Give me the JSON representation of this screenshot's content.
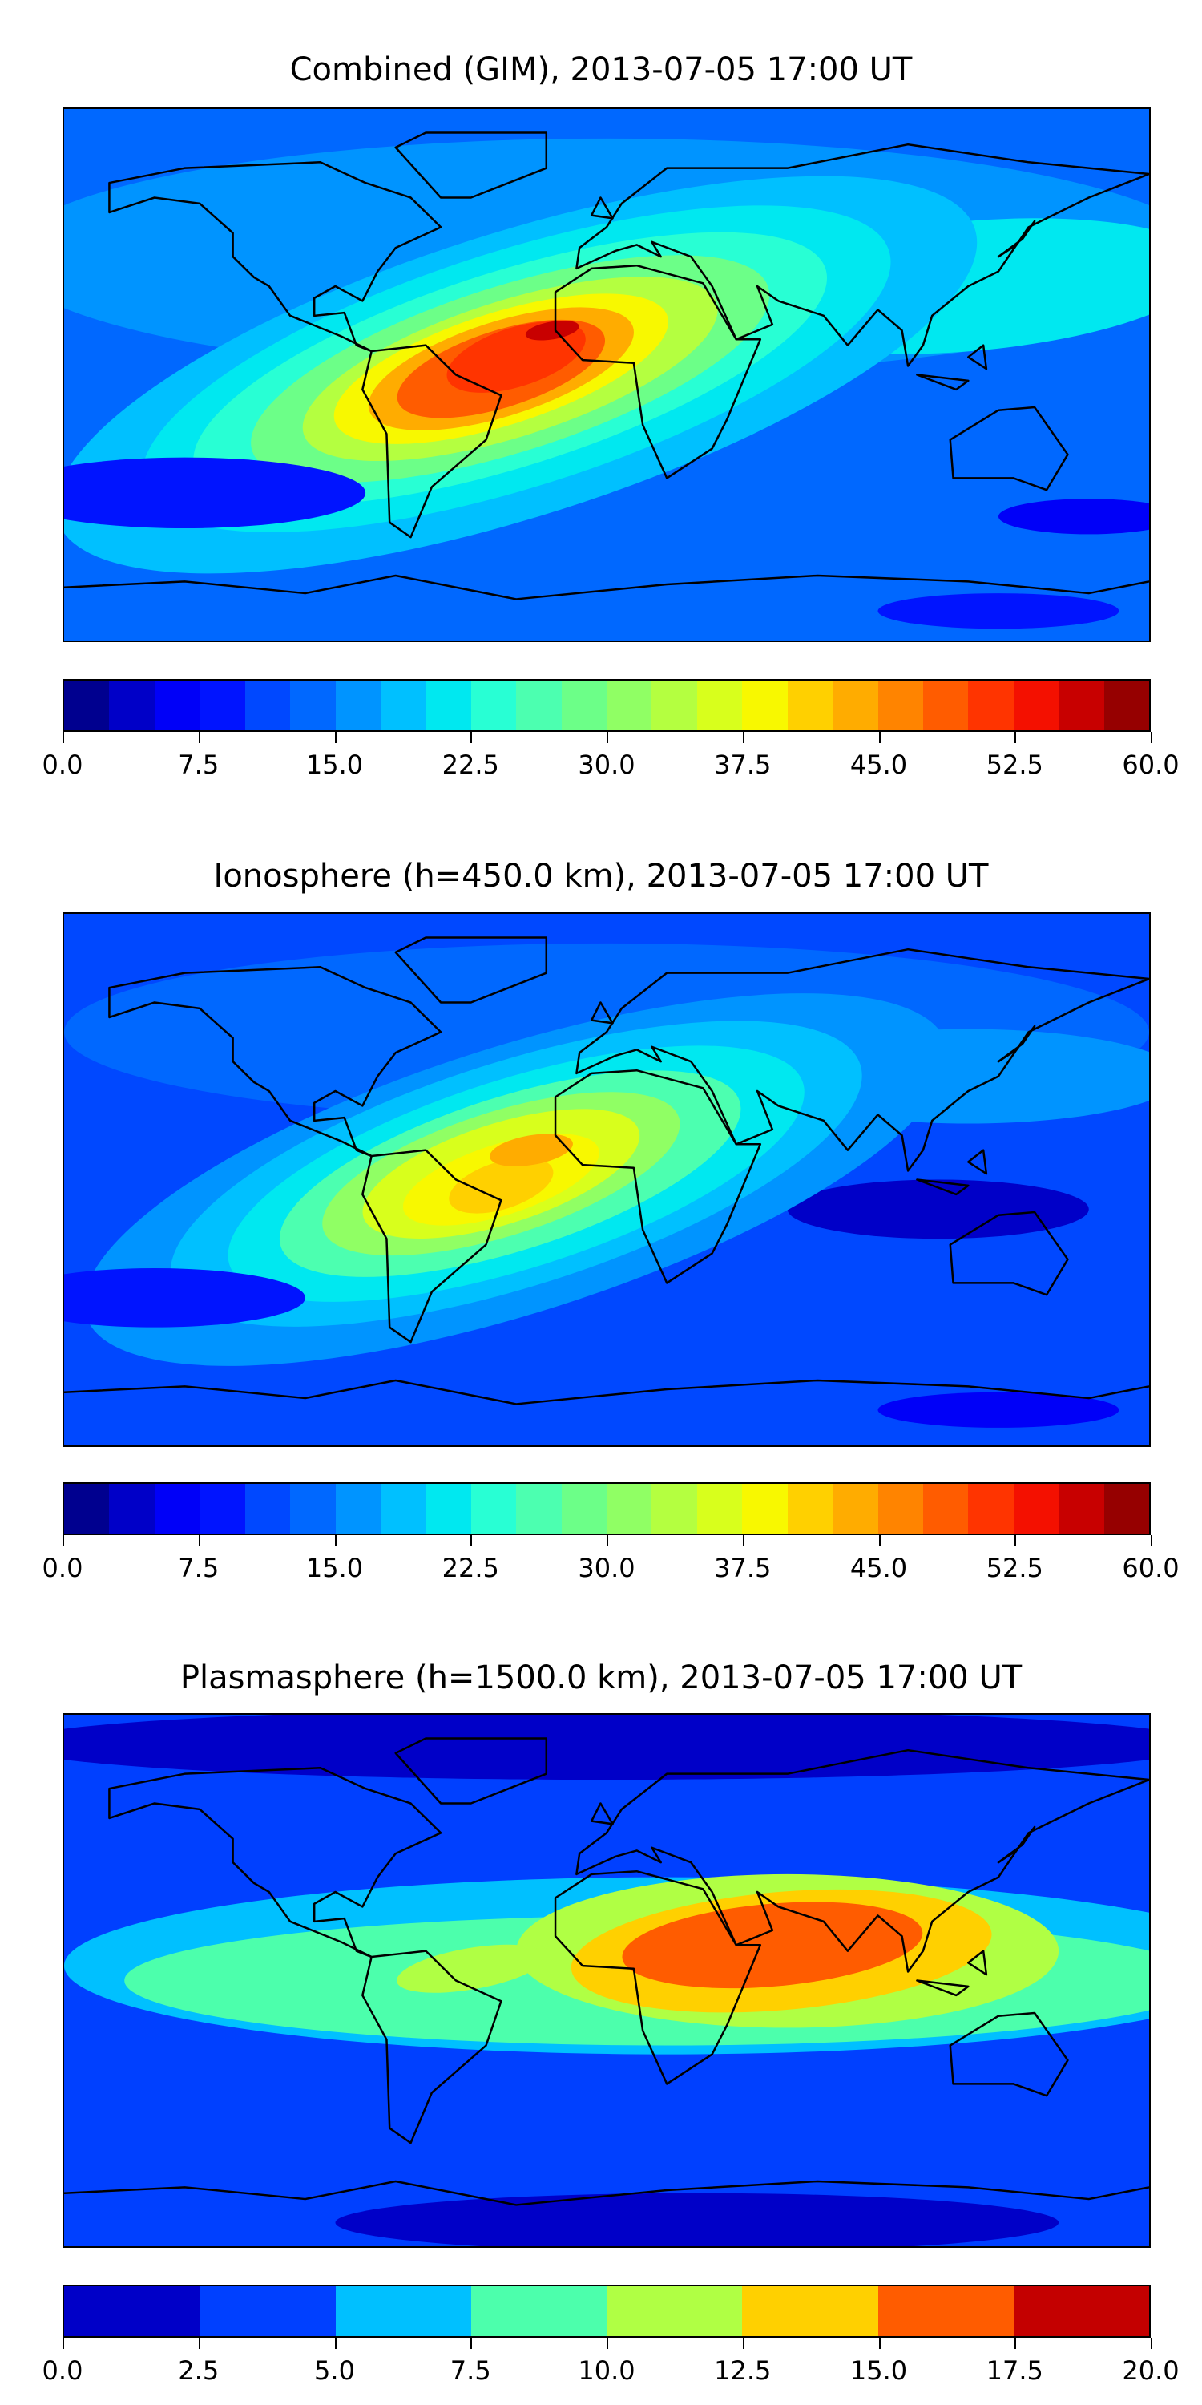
{
  "panels": [
    {
      "title": "Combined (GIM), 2013-07-05 17:00 UT",
      "field": "combined",
      "colorbar": {
        "min": 0,
        "max": 60,
        "step": 2.5,
        "ticks": [
          "0.0",
          "7.5",
          "15.0",
          "22.5",
          "30.0",
          "37.5",
          "45.0",
          "52.5",
          "60.0"
        ],
        "colors": [
          "#00008f",
          "#0000c8",
          "#0000f8",
          "#0014ff",
          "#0048ff",
          "#0068ff",
          "#0094ff",
          "#00c0ff",
          "#00e8f0",
          "#28ffd4",
          "#4cffb0",
          "#6cff88",
          "#90ff64",
          "#b4ff40",
          "#d8ff1c",
          "#f8f800",
          "#ffd000",
          "#ffac00",
          "#ff8400",
          "#ff5c00",
          "#ff3400",
          "#f41000",
          "#c80000",
          "#960000"
        ]
      }
    },
    {
      "title": "Ionosphere  (h=450.0 km), 2013-07-05 17:00 UT",
      "field": "ionosphere",
      "colorbar": {
        "min": 0,
        "max": 60,
        "step": 2.5,
        "ticks": [
          "0.0",
          "7.5",
          "15.0",
          "22.5",
          "30.0",
          "37.5",
          "45.0",
          "52.5",
          "60.0"
        ],
        "colors": [
          "#00008f",
          "#0000c8",
          "#0000f8",
          "#0014ff",
          "#0048ff",
          "#0068ff",
          "#0094ff",
          "#00c0ff",
          "#00e8f0",
          "#28ffd4",
          "#4cffb0",
          "#6cff88",
          "#90ff64",
          "#b4ff40",
          "#d8ff1c",
          "#f8f800",
          "#ffd000",
          "#ffac00",
          "#ff8400",
          "#ff5c00",
          "#ff3400",
          "#f41000",
          "#c80000",
          "#960000"
        ]
      }
    },
    {
      "title": "Plasmasphere (h=1500.0 km), 2013-07-05 17:00 UT",
      "field": "plasmasphere",
      "colorbar": {
        "min": 0,
        "max": 20,
        "step": 2.5,
        "ticks": [
          "0.0",
          "2.5",
          "5.0",
          "7.5",
          "10.0",
          "12.5",
          "15.0",
          "17.5",
          "20.0"
        ],
        "colors": [
          "#0000c8",
          "#0040ff",
          "#00c0ff",
          "#4cffac",
          "#b0ff44",
          "#ffd000",
          "#ff5c00",
          "#c40000"
        ]
      }
    }
  ]
}
